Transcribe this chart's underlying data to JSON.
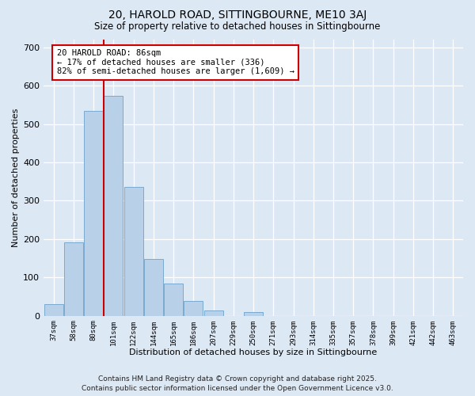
{
  "title": "20, HAROLD ROAD, SITTINGBOURNE, ME10 3AJ",
  "subtitle": "Size of property relative to detached houses in Sittingbourne",
  "xlabel": "Distribution of detached houses by size in Sittingbourne",
  "ylabel": "Number of detached properties",
  "categories": [
    "37sqm",
    "58sqm",
    "80sqm",
    "101sqm",
    "122sqm",
    "144sqm",
    "165sqm",
    "186sqm",
    "207sqm",
    "229sqm",
    "250sqm",
    "271sqm",
    "293sqm",
    "314sqm",
    "335sqm",
    "357sqm",
    "378sqm",
    "399sqm",
    "421sqm",
    "442sqm",
    "463sqm"
  ],
  "values": [
    30,
    192,
    534,
    573,
    335,
    148,
    85,
    38,
    13,
    0,
    10,
    0,
    0,
    0,
    0,
    0,
    0,
    0,
    0,
    0,
    0
  ],
  "bar_color": "#b8d0e8",
  "bar_edge_color": "#7aaacf",
  "vline_x": 2.5,
  "vline_color": "#cc0000",
  "annotation_box_text": "20 HAROLD ROAD: 86sqm\n← 17% of detached houses are smaller (336)\n82% of semi-detached houses are larger (1,609) →",
  "annotation_box_facecolor": "#ffffff",
  "annotation_box_edgecolor": "#cc0000",
  "ylim": [
    0,
    720
  ],
  "yticks": [
    0,
    100,
    200,
    300,
    400,
    500,
    600,
    700
  ],
  "bg_color": "#dde8f5",
  "plot_bg_color": "#dde8f5",
  "footer_line1": "Contains HM Land Registry data © Crown copyright and database right 2025.",
  "footer_line2": "Contains public sector information licensed under the Open Government Licence v3.0.",
  "title_fontsize": 10,
  "subtitle_fontsize": 8.5,
  "annotation_fontsize": 7.5,
  "footer_fontsize": 6.5,
  "xlabel_fontsize": 8,
  "ylabel_fontsize": 8
}
